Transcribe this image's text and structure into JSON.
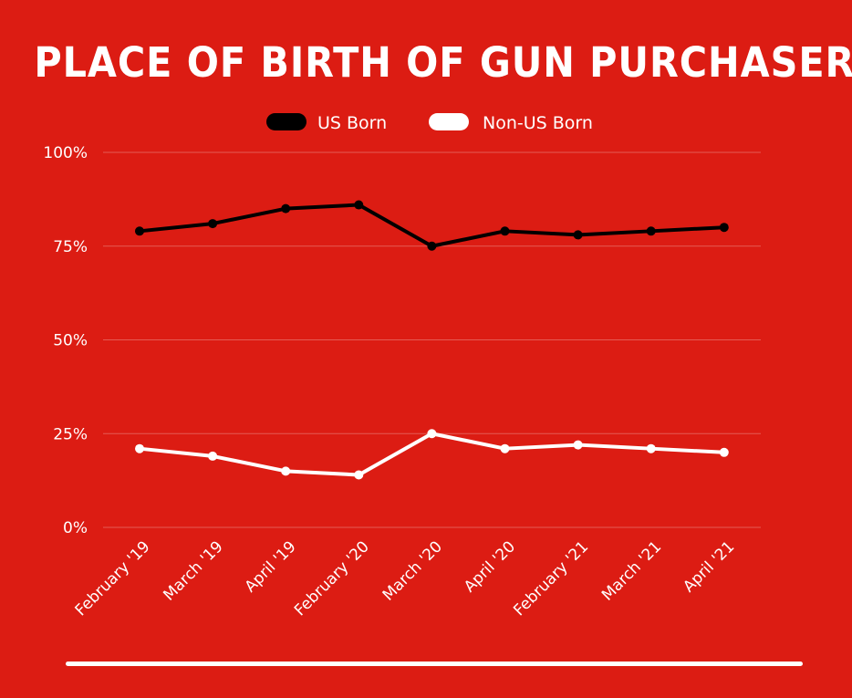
{
  "chart_data": {
    "type": "line",
    "title": "PLACE OF BIRTH OF GUN PURCHASERS",
    "categories": [
      "February '19",
      "March '19",
      "April '19",
      "February '20",
      "March '20",
      "April '20",
      "February '21",
      "March '21",
      "April '21"
    ],
    "ylim": [
      0,
      100
    ],
    "yticks": [
      0,
      25,
      50,
      75,
      100
    ],
    "ytick_labels": [
      "0%",
      "25%",
      "50%",
      "75%",
      "100%"
    ],
    "grid": true,
    "legend_position": "top",
    "series": [
      {
        "name": "US Born",
        "color": "#000000",
        "values": [
          79,
          81,
          85,
          86,
          75,
          79,
          78,
          79,
          80
        ]
      },
      {
        "name": "Non-US Born",
        "color": "#ffffff",
        "values": [
          21,
          19,
          15,
          14,
          25,
          21,
          22,
          21,
          20
        ]
      }
    ]
  }
}
